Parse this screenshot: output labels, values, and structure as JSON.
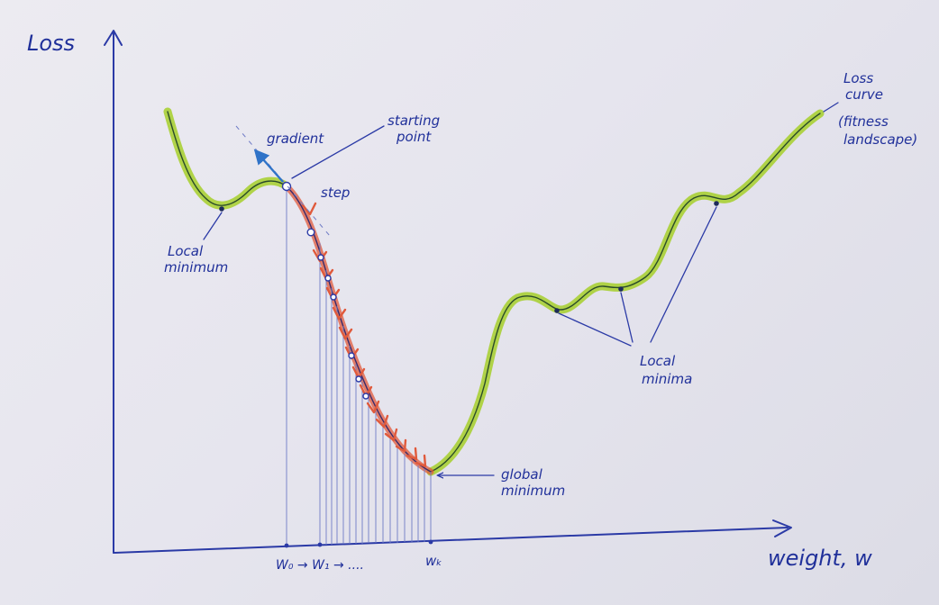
{
  "axes": {
    "y_label": "Loss",
    "x_label": "weight, w"
  },
  "annotations": {
    "gradient": "gradient",
    "starting_point_line1": "starting",
    "starting_point_line2": "point",
    "step": "step",
    "local_minimum_line1": "Local",
    "local_minimum_line2": "minimum",
    "global_minimum_line1": "global",
    "global_minimum_line2": "minimum",
    "local_minima_line1": "Local",
    "local_minima_line2": "minima",
    "loss_curve_line1": "Loss",
    "loss_curve_line2": "curve",
    "loss_curve_line3": "(fitness",
    "loss_curve_line4": "landscape)"
  },
  "ticks": {
    "w0": "W₀ → W₁ → ....",
    "wk": "wₖ"
  },
  "colors": {
    "ink": "#2b3aa6",
    "highlighter": "#a6cf2a",
    "step_arrow": "#e05a3c",
    "gradient_arrow": "#2f73c8"
  }
}
